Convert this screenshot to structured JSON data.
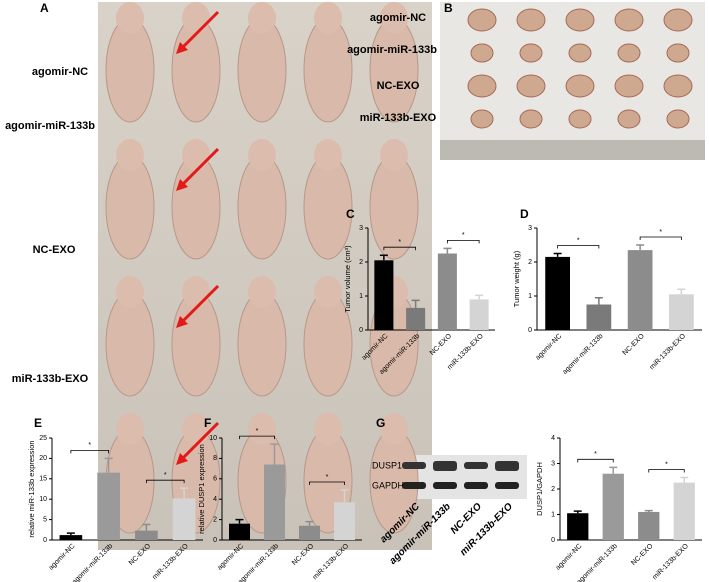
{
  "panel_letters": [
    "A",
    "B",
    "C",
    "D",
    "E",
    "F",
    "G"
  ],
  "figure_a": {
    "labels": [
      "agomir-NC",
      "agomir-miR-133b",
      "NC-EXO",
      "miR-133b-EXO"
    ]
  },
  "figure_b": {
    "labels": [
      "agomir-NC",
      "agomir-miR-133b",
      "NC-EXO",
      "miR-133b-EXO"
    ]
  },
  "blot": {
    "bands": [
      "DUSP1",
      "GAPDH"
    ],
    "lanes": [
      "agomir-NC",
      "agomir-miR-133b",
      "NC-EXO",
      "miR-133b-EXO"
    ]
  },
  "chart_data": [
    {
      "type": "bar",
      "y_label": "Tumor volume (cm³)",
      "categories": [
        "agomir-NC",
        "agomir-miR-133b",
        "NC-EXO",
        "miR-133b-EXO"
      ],
      "values": [
        2.05,
        0.65,
        2.25,
        0.9
      ],
      "errors": [
        0.15,
        0.22,
        0.15,
        0.12
      ],
      "colors": [
        "#000000",
        "#7a7a7a",
        "#8c8c8c",
        "#d4d4d4"
      ],
      "ylim": [
        0,
        3
      ],
      "yticks": [
        0,
        1,
        2,
        3
      ],
      "annotations": [
        "*",
        "*"
      ]
    },
    {
      "type": "bar",
      "y_label": "Tumor weight (g)",
      "categories": [
        "agomir-NC",
        "agomir-miR-133b",
        "NC-EXO",
        "miR-133b-EXO"
      ],
      "values": [
        2.15,
        0.75,
        2.35,
        1.05
      ],
      "errors": [
        0.1,
        0.2,
        0.15,
        0.15
      ],
      "colors": [
        "#000000",
        "#7a7a7a",
        "#8c8c8c",
        "#d4d4d4"
      ],
      "ylim": [
        0,
        3
      ],
      "yticks": [
        0,
        1,
        2,
        3
      ],
      "annotations": [
        "*",
        "*"
      ]
    },
    {
      "type": "bar",
      "y_label": "relative miR-133b expression",
      "categories": [
        "agomir-NC",
        "agomir-miR-133b",
        "NC-EXO",
        "miR-133b-EXO"
      ],
      "values": [
        1.2,
        16.5,
        2.3,
        10.2
      ],
      "errors": [
        0.5,
        3.5,
        1.5,
        2.5
      ],
      "colors": [
        "#000000",
        "#9a9a9a",
        "#8c8c8c",
        "#d4d4d4"
      ],
      "ylim": [
        0,
        25
      ],
      "yticks": [
        0,
        5,
        10,
        15,
        20,
        25
      ],
      "annotations": [
        "*",
        "*"
      ]
    },
    {
      "type": "bar",
      "y_label": "relative DUSP1 expression",
      "categories": [
        "agomir-NC",
        "agomir-miR-133b",
        "NC-EXO",
        "miR-133b-EXO"
      ],
      "values": [
        1.6,
        7.4,
        1.4,
        3.7
      ],
      "errors": [
        0.4,
        2.0,
        0.4,
        1.2
      ],
      "colors": [
        "#000000",
        "#9a9a9a",
        "#8c8c8c",
        "#d4d4d4"
      ],
      "ylim": [
        0,
        10
      ],
      "yticks": [
        0,
        2,
        4,
        6,
        8,
        10
      ],
      "annotations": [
        "*",
        "*"
      ]
    },
    {
      "type": "bar",
      "y_label": "DUSP1/GAPDH",
      "categories": [
        "agomir-NC",
        "agomir-miR-133b",
        "NC-EXO",
        "miR-133b-EXO"
      ],
      "values": [
        1.05,
        2.6,
        1.1,
        2.25
      ],
      "errors": [
        0.08,
        0.25,
        0.05,
        0.2
      ],
      "colors": [
        "#000000",
        "#9a9a9a",
        "#8c8c8c",
        "#d4d4d4"
      ],
      "ylim": [
        0,
        4
      ],
      "yticks": [
        0,
        1,
        2,
        3,
        4
      ],
      "annotations": [
        "*",
        "*"
      ]
    }
  ]
}
